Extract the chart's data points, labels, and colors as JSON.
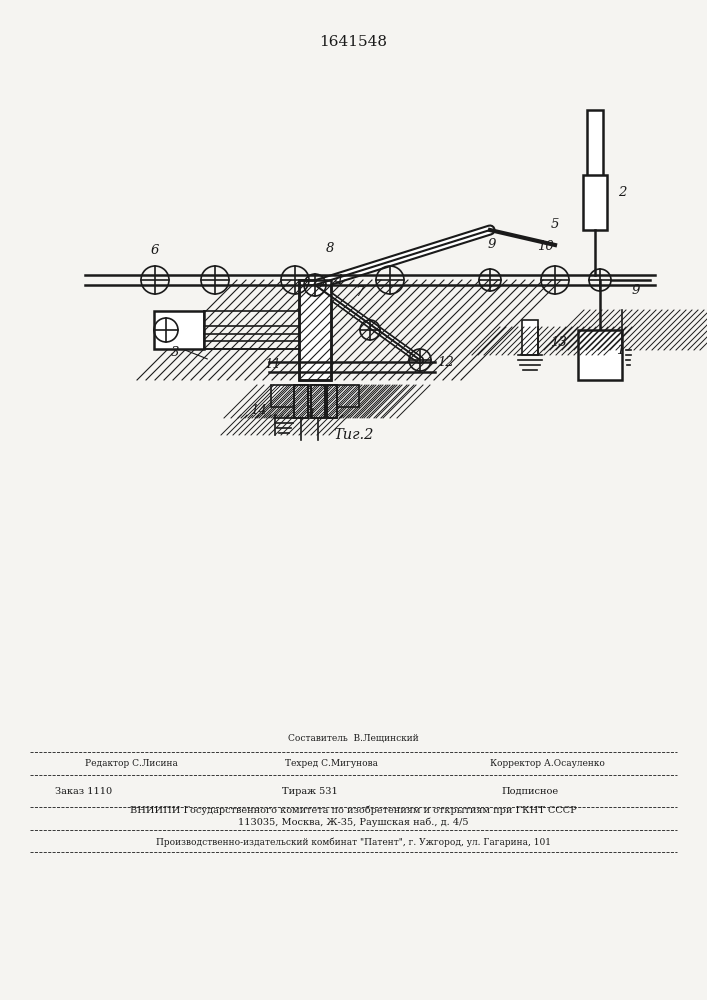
{
  "patent_number": "1641548",
  "fig_label": "Τиг.2",
  "background_color": "#f5f4f1",
  "line_color": "#1a1a1a",
  "footer": {
    "sestavitel": "Составитель  В.Лещинский",
    "redaktor": "Редактор С.Лисина",
    "tehred": "Техред С.Мигунова",
    "korrektor": "Корректор А.Осауленко",
    "zakaz": "Заказ 1110",
    "tirazh": "Тираж 531",
    "podpisnoe": "Подписное",
    "vniip1": "ВНИИПИ Государственного комитета по изобретениям и открытиям при ГКНТ СССР",
    "vniip2": "113035, Москва, Ж-35, Раушская наб., д. 4/5",
    "proizv": "Производственно-издательский комбинат \"Патент\", г. Ужгород, ул. Гагарина, 101"
  }
}
